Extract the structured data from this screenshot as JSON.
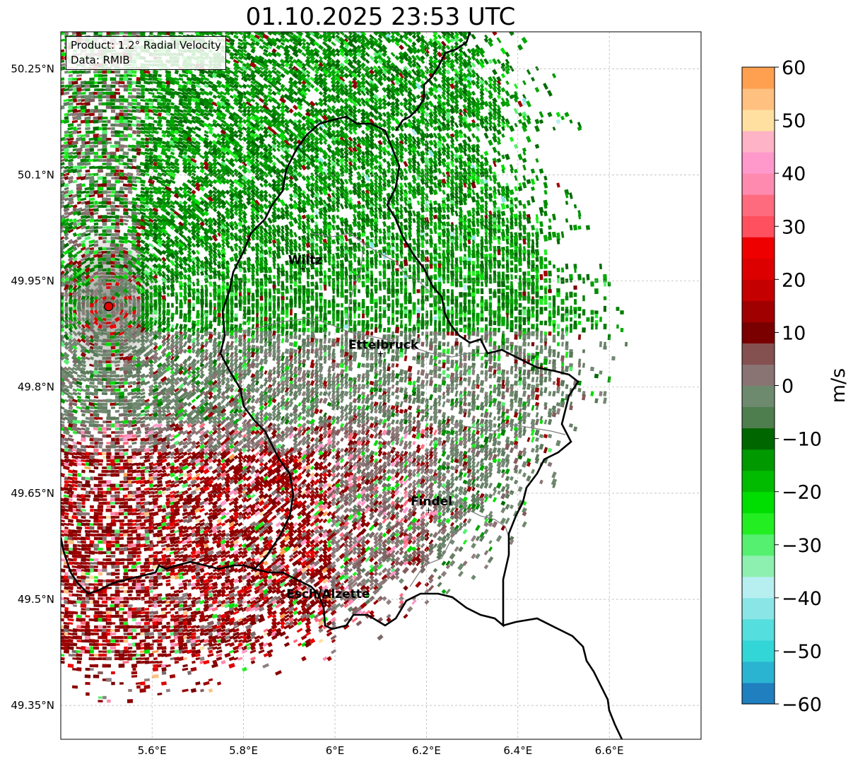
{
  "title": "01.10.2025 23:53 UTC",
  "info_box": {
    "product": "Product: 1.2° Radial Velocity",
    "source": "Data: RMIB"
  },
  "map": {
    "lon_range": [
      5.4,
      6.8
    ],
    "lat_range": [
      49.3,
      50.3
    ],
    "lon_ticks": [
      {
        "value": 5.6,
        "label": "5.6°E"
      },
      {
        "value": 5.8,
        "label": "5.8°E"
      },
      {
        "value": 6.0,
        "label": "6°E"
      },
      {
        "value": 6.2,
        "label": "6.2°E"
      },
      {
        "value": 6.4,
        "label": "6.4°E"
      },
      {
        "value": 6.6,
        "label": "6.6°E"
      }
    ],
    "lat_ticks": [
      {
        "value": 50.25,
        "label": "50.25°N"
      },
      {
        "value": 50.1,
        "label": "50.1°N"
      },
      {
        "value": 49.95,
        "label": "49.95°N"
      },
      {
        "value": 49.8,
        "label": "49.8°N"
      },
      {
        "value": 49.65,
        "label": "49.65°N"
      },
      {
        "value": 49.5,
        "label": "49.5°N"
      },
      {
        "value": 49.35,
        "label": "49.35°N"
      }
    ],
    "radar_site": {
      "lon": 5.505,
      "lat": 49.914
    },
    "cities": [
      {
        "name": "Wiltz",
        "lon": 5.935,
        "lat": 49.968
      },
      {
        "name": "Ettelbruck",
        "lon": 6.106,
        "lat": 49.848
      },
      {
        "name": "Findel",
        "lon": 6.211,
        "lat": 49.627
      },
      {
        "name": "Esch/Alzette",
        "lon": 5.985,
        "lat": 49.496
      }
    ],
    "colors": {
      "radar_marker": "#e00000",
      "border": "#000000",
      "district": "#808080",
      "grid": "#b0b0b0"
    }
  },
  "colorbar": {
    "unit": "m/s",
    "min": -60,
    "max": 60,
    "ticks": [
      {
        "value": 60,
        "label": "60"
      },
      {
        "value": 50,
        "label": "50"
      },
      {
        "value": 40,
        "label": "40"
      },
      {
        "value": 30,
        "label": "30"
      },
      {
        "value": 20,
        "label": "20"
      },
      {
        "value": 10,
        "label": "10"
      },
      {
        "value": 0,
        "label": "0"
      },
      {
        "value": -10,
        "label": "−10"
      },
      {
        "value": -20,
        "label": "−20"
      },
      {
        "value": -30,
        "label": "−30"
      },
      {
        "value": -40,
        "label": "−40"
      },
      {
        "value": -50,
        "label": "−50"
      },
      {
        "value": -60,
        "label": "−60"
      }
    ],
    "stops": [
      {
        "from": -60,
        "to": -56,
        "color": "#1f7fbf"
      },
      {
        "from": -56,
        "to": -52,
        "color": "#2bb3d2"
      },
      {
        "from": -52,
        "to": -48,
        "color": "#33d6d6"
      },
      {
        "from": -48,
        "to": -44,
        "color": "#55dede"
      },
      {
        "from": -44,
        "to": -40,
        "color": "#8ae6e6"
      },
      {
        "from": -40,
        "to": -36,
        "color": "#b7eef0"
      },
      {
        "from": -36,
        "to": -32,
        "color": "#8ef0b0"
      },
      {
        "from": -32,
        "to": -28,
        "color": "#55f070"
      },
      {
        "from": -28,
        "to": -24,
        "color": "#22ee22"
      },
      {
        "from": -24,
        "to": -20,
        "color": "#00dd00"
      },
      {
        "from": -20,
        "to": -16,
        "color": "#00bb00"
      },
      {
        "from": -16,
        "to": -12,
        "color": "#009900"
      },
      {
        "from": -12,
        "to": -8,
        "color": "#006600"
      },
      {
        "from": -8,
        "to": -4,
        "color": "#4e7d4e"
      },
      {
        "from": -4,
        "to": 0,
        "color": "#6e8a6e"
      },
      {
        "from": 0,
        "to": 4,
        "color": "#8a7373"
      },
      {
        "from": 4,
        "to": 8,
        "color": "#845050"
      },
      {
        "from": 8,
        "to": 12,
        "color": "#7a0000"
      },
      {
        "from": 12,
        "to": 16,
        "color": "#a00000"
      },
      {
        "from": 16,
        "to": 20,
        "color": "#c40000"
      },
      {
        "from": 20,
        "to": 24,
        "color": "#dd0000"
      },
      {
        "from": 24,
        "to": 28,
        "color": "#ee0000"
      },
      {
        "from": 28,
        "to": 32,
        "color": "#ff5060"
      },
      {
        "from": 32,
        "to": 36,
        "color": "#ff6b7e"
      },
      {
        "from": 36,
        "to": 40,
        "color": "#ff8ab0"
      },
      {
        "from": 40,
        "to": 44,
        "color": "#ff99cc"
      },
      {
        "from": 44,
        "to": 48,
        "color": "#ffb3c6"
      },
      {
        "from": 48,
        "to": 52,
        "color": "#ffe0a0"
      },
      {
        "from": 52,
        "to": 56,
        "color": "#ffc080"
      },
      {
        "from": 56,
        "to": 60,
        "color": "#ff9f50"
      }
    ]
  }
}
